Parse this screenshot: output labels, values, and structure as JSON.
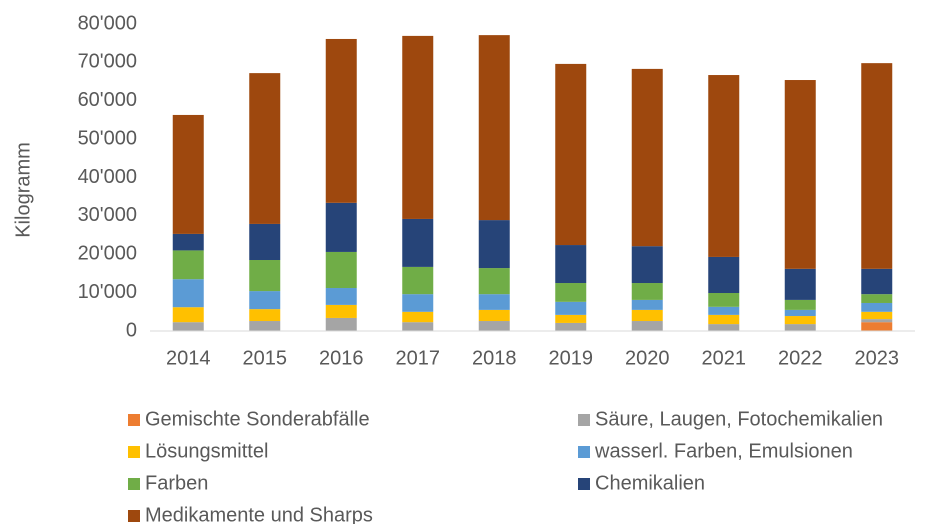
{
  "chart_data": {
    "type": "stacked_bar",
    "y_label": "Kilogramm",
    "categories": [
      "2014",
      "2015",
      "2016",
      "2017",
      "2018",
      "2019",
      "2020",
      "2021",
      "2022",
      "2023"
    ],
    "series": [
      {
        "name": "Gemischte Sonderabfälle",
        "color": "#ed7d31",
        "values": [
          0,
          0,
          0,
          0,
          0,
          0,
          0,
          0,
          0,
          2300
        ]
      },
      {
        "name": "Säure, Laugen, Fotochemikalien",
        "color": "#a5a5a5",
        "values": [
          2300,
          2600,
          3400,
          2300,
          2600,
          2100,
          2600,
          1800,
          1800,
          800
        ]
      },
      {
        "name": "Lösungsmittel",
        "color": "#ffc000",
        "values": [
          3900,
          3100,
          3400,
          2700,
          2900,
          2100,
          2900,
          2400,
          2100,
          1900
        ]
      },
      {
        "name": "wasserl. Farben, Emulsionen",
        "color": "#5b9bd5",
        "values": [
          7300,
          4700,
          4400,
          4600,
          4100,
          3400,
          2600,
          2100,
          1600,
          2300
        ]
      },
      {
        "name": "Farben",
        "color": "#70ad47",
        "values": [
          7500,
          8100,
          9400,
          7100,
          6800,
          4900,
          4400,
          3600,
          2600,
          2300
        ]
      },
      {
        "name": "Chemikalien",
        "color": "#264478",
        "values": [
          4300,
          9400,
          12800,
          12500,
          12500,
          9900,
          9600,
          9400,
          8100,
          6600
        ]
      },
      {
        "name": "Medikamente und Sharps",
        "color": "#9e480e",
        "values": [
          31000,
          39300,
          42700,
          47700,
          48200,
          47200,
          46200,
          47400,
          49200,
          53600
        ]
      }
    ],
    "ylim": [
      0,
      80000
    ],
    "yticks": [
      0,
      {
        "value": 10000,
        "label": "10'000"
      },
      {
        "value": 20000,
        "label": "20'000"
      },
      {
        "value": 30000,
        "label": "30'000"
      },
      {
        "value": 40000,
        "label": "40'000"
      },
      {
        "value": 50000,
        "label": "50'000"
      },
      {
        "value": 60000,
        "label": "60'000"
      },
      {
        "value": 70000,
        "label": "70'000"
      },
      {
        "value": 80000,
        "label": "80'000"
      }
    ],
    "grid": false
  }
}
